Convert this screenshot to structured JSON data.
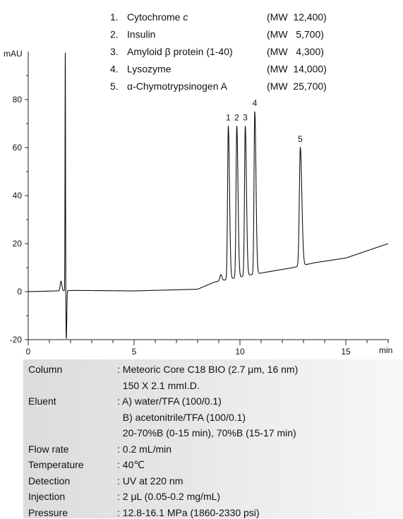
{
  "chart_data": {
    "type": "line",
    "legend": [
      {
        "num": "1.",
        "name": "Cytochrome ",
        "name_italic": "c",
        "mw": "(MW  12,400)"
      },
      {
        "num": "2.",
        "name": "Insulin",
        "name_italic": "",
        "mw": "(MW   5,700)"
      },
      {
        "num": "3.",
        "name": "Amyloid β protein (1-40)",
        "name_italic": "",
        "mw": "(MW   4,300)"
      },
      {
        "num": "4.",
        "name": "Lysozyme",
        "name_italic": "",
        "mw": "(MW  14,000)"
      },
      {
        "num": "5.",
        "name": "α-Chymotrypsinogen A",
        "name_italic": "",
        "mw": "(MW  25,700)"
      }
    ],
    "xlabel": "min",
    "ylabel": "mAU",
    "xlim": [
      0,
      17
    ],
    "ylim": [
      -20,
      100
    ],
    "x_ticks": [
      "0",
      "5",
      "10",
      "15"
    ],
    "y_ticks": [
      "-20",
      "0",
      "20",
      "40",
      "60",
      "80"
    ],
    "injection_peak": {
      "x": 1.75,
      "y_max": 100,
      "y_min": -20
    },
    "baseline": [
      [
        0,
        0
      ],
      [
        2.2,
        0.5
      ],
      [
        5,
        0.3
      ],
      [
        8,
        1
      ],
      [
        8.8,
        4
      ],
      [
        10.5,
        7
      ],
      [
        12.5,
        10
      ],
      [
        13.5,
        12
      ],
      [
        15,
        14
      ],
      [
        17,
        20
      ]
    ],
    "peaks": [
      {
        "label": "1",
        "x": 9.45,
        "y": 69
      },
      {
        "label": "2",
        "x": 9.85,
        "y": 69
      },
      {
        "label": "3",
        "x": 10.25,
        "y": 69
      },
      {
        "label": "4",
        "x": 10.7,
        "y": 75
      },
      {
        "label": "5",
        "x": 12.85,
        "y": 60
      }
    ]
  },
  "conditions": [
    {
      "label": "Column",
      "values": [
        ": Meteoric Core C18 BIO (2.7 μm, 16 nm)",
        "  150 X 2.1 mmI.D."
      ]
    },
    {
      "label": "Eluent",
      "values": [
        ": A) water/TFA (100/0.1)",
        "  B) acetonitrile/TFA (100/0.1)",
        "  20-70%B (0-15 min), 70%B (15-17 min)"
      ]
    },
    {
      "label": "Flow rate",
      "values": [
        ": 0.2 mL/min"
      ]
    },
    {
      "label": "Temperature",
      "values": [
        ": 40℃"
      ]
    },
    {
      "label": "Detection",
      "values": [
        ": UV at 220 nm"
      ]
    },
    {
      "label": "Injection",
      "values": [
        ": 2 μL (0.05-0.2 mg/mL)"
      ]
    },
    {
      "label": "Pressure",
      "values": [
        ": 12.8-16.1 MPa (1860-2330 psi)"
      ]
    }
  ]
}
